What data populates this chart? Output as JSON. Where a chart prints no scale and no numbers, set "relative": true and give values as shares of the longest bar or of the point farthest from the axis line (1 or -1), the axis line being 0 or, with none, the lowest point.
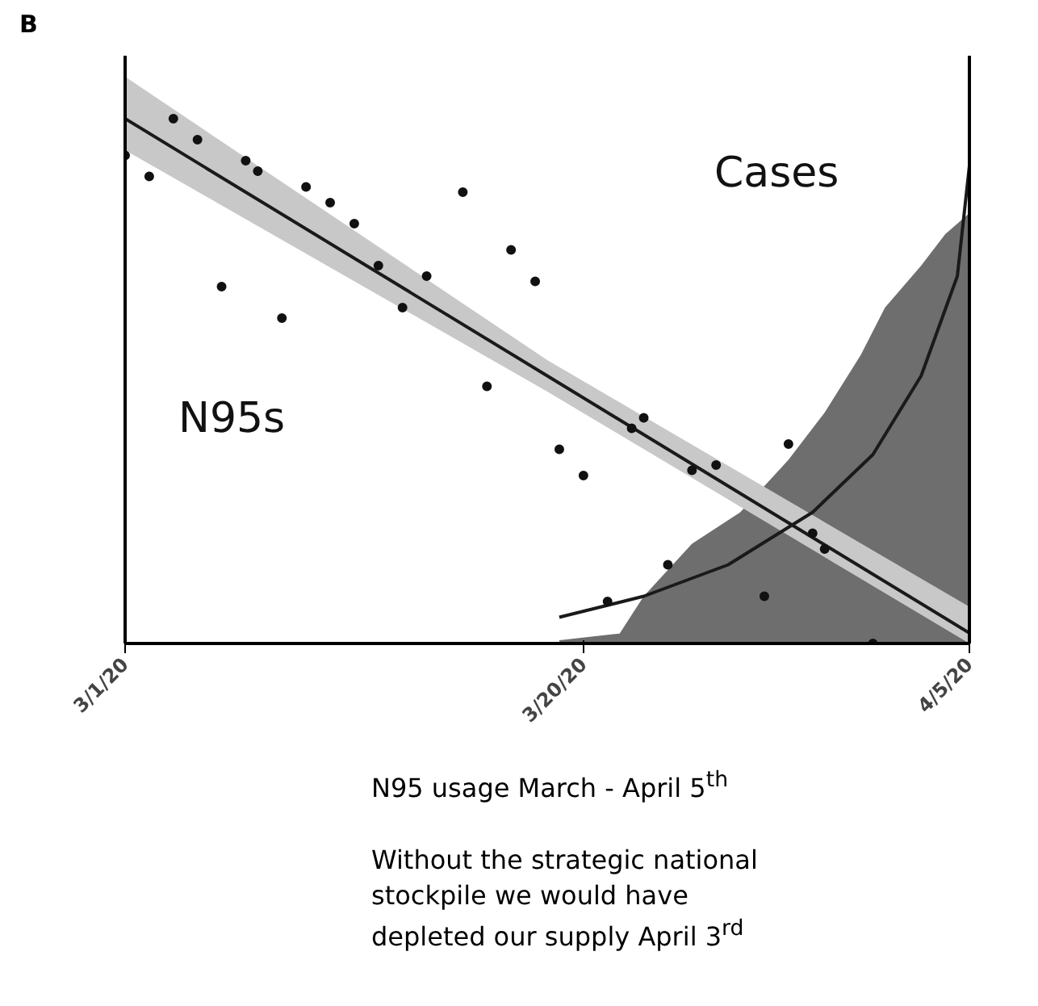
{
  "chart_data": {
    "type": "scatter",
    "relative": true,
    "xlim": [
      "2020-03-01",
      "2020-04-05"
    ],
    "xticks": [
      {
        "value": "2020-03-01",
        "label": "3/1/20"
      },
      {
        "value": "2020-03-20",
        "label": "3/20/20"
      },
      {
        "value": "2020-04-05",
        "label": "4/5/20"
      }
    ],
    "tick_labels": "x",
    "grid": false,
    "series": [
      {
        "type": "area",
        "color": "#6e6e6e",
        "x": [
          "2020-03-19",
          "2020-03-21T12:00",
          "2020-03-22T12:00",
          "2020-03-24T12:00",
          "2020-03-26T12:00",
          "2020-03-28T12:00",
          "2020-03-30",
          "2020-03-31T12:00",
          "2020-04-01T12:00",
          "2020-04-03",
          "2020-04-04",
          "2020-04-05"
        ],
        "values": [
          0.006,
          0.019,
          0.09,
          0.19,
          0.25,
          0.35,
          0.44,
          0.55,
          0.64,
          0.72,
          0.78,
          0.82
        ]
      },
      {
        "type": "line",
        "color": "#1a1a1a",
        "x": [
          "2020-03-01",
          "2020-03-18T12:00",
          "2020-04-05"
        ],
        "values": [
          1.0,
          0.51,
          0.02
        ],
        "lower": [
          0.94,
          0.48,
          0.0
        ],
        "upper": [
          1.08,
          0.54,
          0.07
        ]
      },
      {
        "type": "line",
        "color": "#1a1a1a",
        "x": [
          "2020-03-19",
          "2020-03-22T12:00",
          "2020-03-26",
          "2020-03-29T12:00",
          "2020-04-01",
          "2020-04-03",
          "2020-04-04T12:00",
          "2020-04-05"
        ],
        "values": [
          0.05,
          0.09,
          0.15,
          0.25,
          0.36,
          0.51,
          0.7,
          0.91
        ]
      },
      {
        "color": "#111111",
        "marker": "circle",
        "x": [
          "2020-03-01",
          "2020-03-02",
          "2020-03-03",
          "2020-03-04",
          "2020-03-05",
          "2020-03-06",
          "2020-03-06T12:00",
          "2020-03-07T12:00",
          "2020-03-08T12:00",
          "2020-03-09T12:00",
          "2020-03-10T12:00",
          "2020-03-11T12:00",
          "2020-03-12T12:00",
          "2020-03-13T12:00",
          "2020-03-15",
          "2020-03-16",
          "2020-03-17",
          "2020-03-18",
          "2020-03-19",
          "2020-03-20",
          "2020-03-21",
          "2020-03-22",
          "2020-03-22T12:00",
          "2020-03-23T12:00",
          "2020-03-24T12:00",
          "2020-03-25T12:00",
          "2020-03-27T12:00",
          "2020-03-28T12:00",
          "2020-03-29T12:00",
          "2020-03-30",
          "2020-04-01"
        ],
        "values": [
          0.93,
          0.89,
          1.0,
          0.96,
          0.68,
          0.92,
          0.9,
          0.62,
          0.87,
          0.84,
          0.8,
          0.72,
          0.64,
          0.7,
          0.86,
          0.49,
          0.75,
          0.69,
          0.37,
          0.32,
          0.08,
          0.41,
          0.43,
          0.15,
          0.33,
          0.34,
          0.09,
          0.38,
          0.21,
          0.18,
          0.0
        ]
      }
    ],
    "annotations": [
      "B",
      "N95s",
      "Cases",
      "N95 usage March - April 5$^{th}$",
      "Without the strategic national\nstockpile we would have\ndepleted our supply April 3$^{rd}$"
    ]
  }
}
